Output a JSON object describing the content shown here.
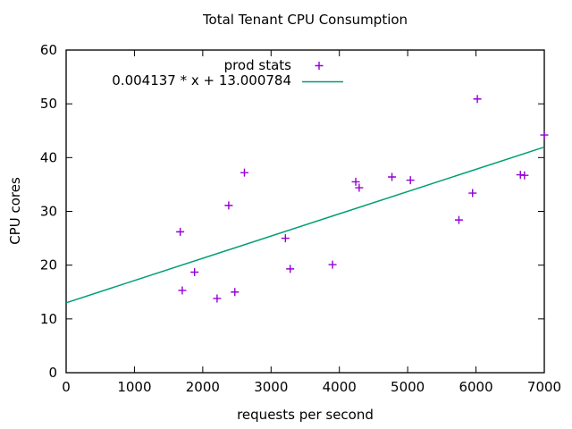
{
  "window": {
    "background": "#ffffff"
  },
  "chart_data": {
    "type": "scatter",
    "title": "Total Tenant CPU Consumption",
    "xlabel": "requests per second",
    "ylabel": "CPU cores",
    "xlim": [
      0,
      7000
    ],
    "ylim": [
      0,
      60
    ],
    "x_ticks": [
      0,
      1000,
      2000,
      3000,
      4000,
      5000,
      6000,
      7000
    ],
    "y_ticks": [
      0,
      10,
      20,
      30,
      40,
      50,
      60
    ],
    "grid": false,
    "legend_position": "inside-top-left",
    "series": [
      {
        "name": "prod stats",
        "kind": "scatter",
        "marker": "plus",
        "color": "#9400d3",
        "points": [
          [
            1670,
            26.2
          ],
          [
            1700,
            15.3
          ],
          [
            1880,
            18.7
          ],
          [
            2210,
            13.8
          ],
          [
            2380,
            31.1
          ],
          [
            2470,
            15.0
          ],
          [
            2610,
            37.2
          ],
          [
            3210,
            25.0
          ],
          [
            3280,
            19.3
          ],
          [
            3900,
            20.1
          ],
          [
            4240,
            35.5
          ],
          [
            4290,
            34.4
          ],
          [
            4770,
            36.4
          ],
          [
            5040,
            35.8
          ],
          [
            5750,
            28.4
          ],
          [
            5950,
            33.4
          ],
          [
            6020,
            50.9
          ],
          [
            6650,
            36.8
          ],
          [
            6710,
            36.7
          ],
          [
            7000,
            44.2
          ]
        ]
      },
      {
        "name": "0.004137 * x + 13.000784",
        "kind": "line",
        "color": "#009e73",
        "slope": 0.004137,
        "intercept": 13.000784,
        "x_range": [
          0,
          7000
        ]
      }
    ],
    "colors": {
      "points": "#9400d3",
      "fit_line": "#009e73",
      "axis": "#000000",
      "text": "#000000"
    }
  },
  "legend": {
    "entry_scatter": "prod stats",
    "entry_fit": "0.004137 * x + 13.000784"
  }
}
